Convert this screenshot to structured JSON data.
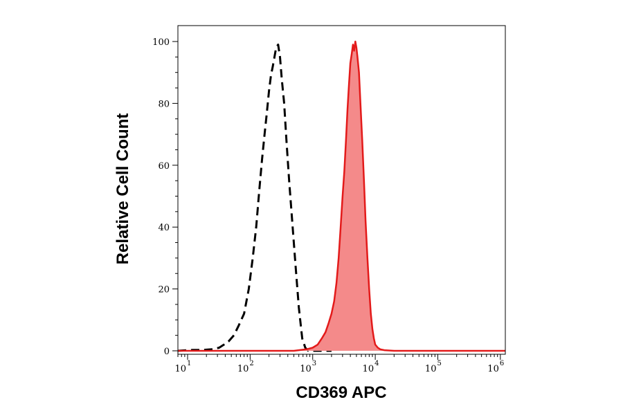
{
  "chart_data": {
    "type": "area",
    "xlabel": "CD369 APC",
    "ylabel": "Relative Cell Count",
    "xscale": "log",
    "xlim": [
      7,
      1200000
    ],
    "ylim": [
      0,
      105
    ],
    "grid": false,
    "x_ticks": [
      {
        "base": "10",
        "exp": "1",
        "value": 10
      },
      {
        "base": "10",
        "exp": "2",
        "value": 100
      },
      {
        "base": "10",
        "exp": "3",
        "value": 1000
      },
      {
        "base": "10",
        "exp": "4",
        "value": 10000
      },
      {
        "base": "10",
        "exp": "5",
        "value": 100000
      },
      {
        "base": "10",
        "exp": "6",
        "value": 1000000
      }
    ],
    "y_ticks": [
      {
        "label": "0",
        "value": 0
      },
      {
        "label": "20",
        "value": 20
      },
      {
        "label": "40",
        "value": 40
      },
      {
        "label": "60",
        "value": 60
      },
      {
        "label": "80",
        "value": 80
      },
      {
        "label": "100",
        "value": 100
      }
    ],
    "series": [
      {
        "style": "dashed",
        "fill": false,
        "color": "#000000",
        "x": [
          7,
          12,
          18,
          25,
          32,
          38,
          45,
          55,
          65,
          80,
          95,
          110,
          125,
          140,
          155,
          170,
          185,
          200,
          215,
          230,
          245,
          260,
          280,
          300,
          320,
          350,
          380,
          420,
          470,
          530,
          600,
          680,
          760,
          850,
          1000,
          2000
        ],
        "y": [
          0,
          0.3,
          0.3,
          0.5,
          1,
          2,
          3,
          5,
          8,
          12,
          20,
          30,
          40,
          52,
          62,
          70,
          77,
          84,
          89,
          92,
          95,
          98,
          99,
          95,
          88,
          80,
          68,
          55,
          42,
          28,
          14,
          4,
          1,
          0,
          0,
          0
        ]
      },
      {
        "style": "solid",
        "fill": true,
        "color": "#e31a1a",
        "fill_color": "#f48a8a",
        "x": [
          7,
          200,
          500,
          800,
          1000,
          1200,
          1400,
          1600,
          1800,
          2000,
          2200,
          2400,
          2600,
          2800,
          3000,
          3200,
          3400,
          3600,
          3800,
          4000,
          4200,
          4400,
          4600,
          4800,
          5000,
          5200,
          5500,
          5800,
          6200,
          6600,
          7000,
          7500,
          8000,
          8500,
          9000,
          9500,
          10000,
          11000,
          12000,
          14000,
          20000,
          100000,
          1200000
        ],
        "y": [
          0,
          0,
          0,
          0.5,
          1,
          2,
          4,
          6,
          9,
          12,
          16,
          22,
          30,
          40,
          50,
          58,
          68,
          78,
          86,
          93,
          96,
          99,
          97,
          100,
          98,
          95,
          90,
          80,
          68,
          55,
          42,
          30,
          20,
          12,
          7,
          4,
          2,
          1,
          0.5,
          0.2,
          0,
          0,
          0
        ]
      }
    ]
  }
}
